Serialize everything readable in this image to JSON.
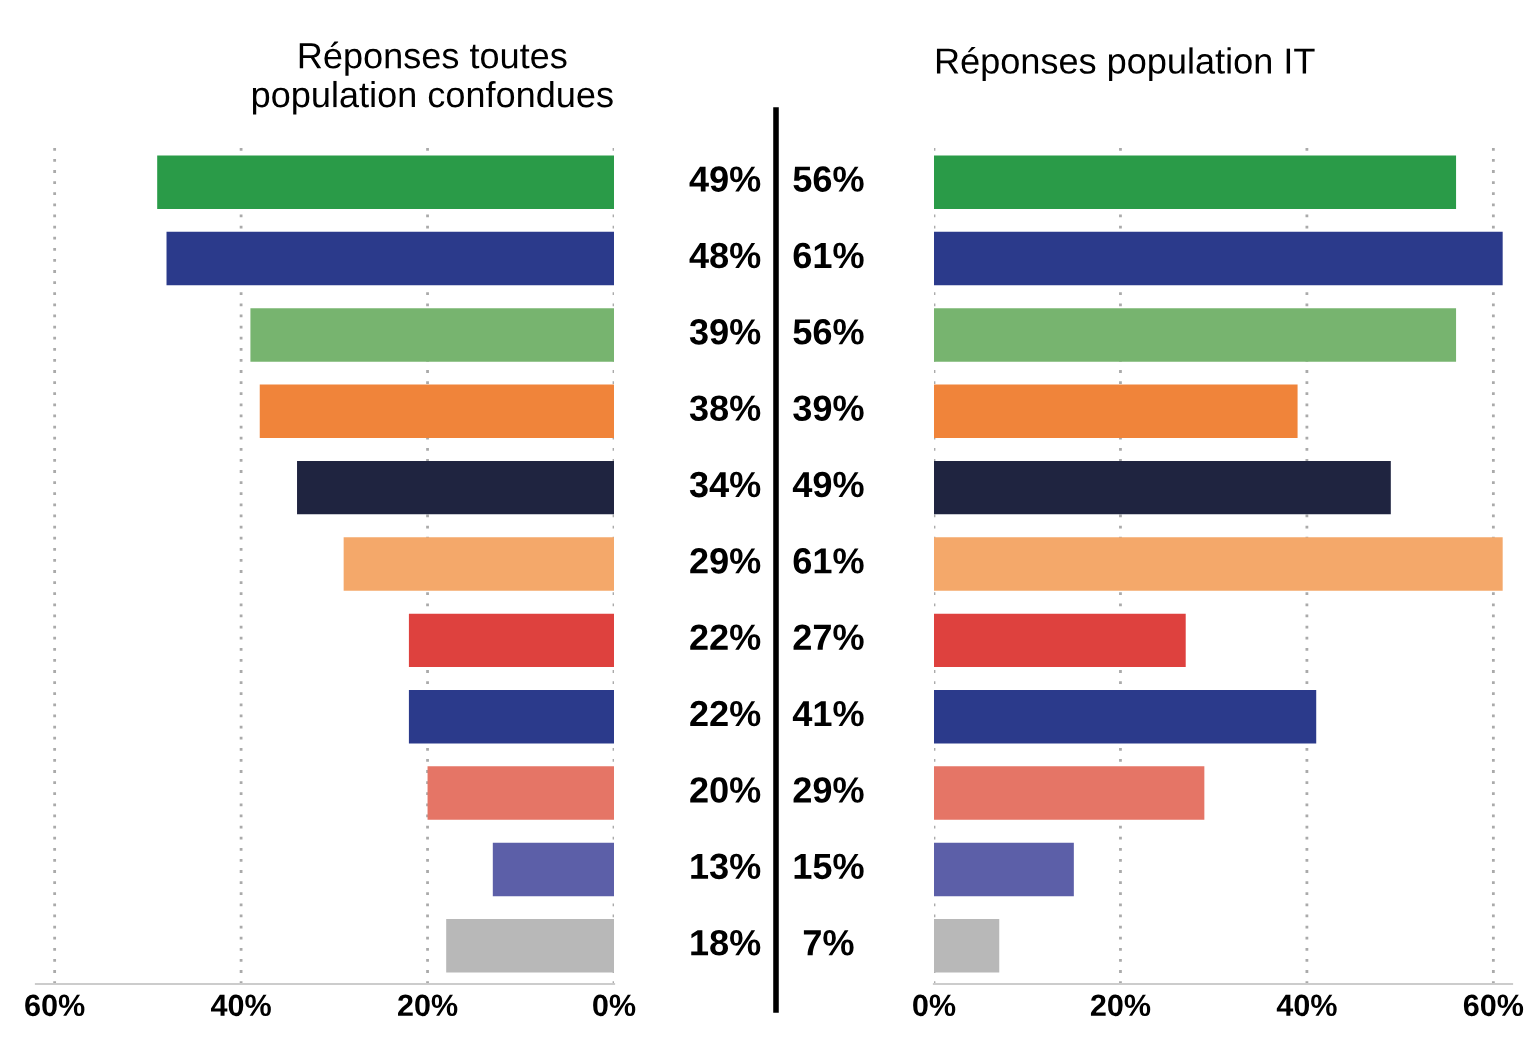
{
  "chart_data": [
    {
      "type": "bar",
      "orientation": "horizontal",
      "title": "Réponses toutes\npopulation confondues",
      "categories": [
        null,
        null,
        null,
        null,
        null,
        null,
        null,
        null,
        null,
        null,
        null
      ],
      "values": [
        49,
        48,
        39,
        38,
        34,
        29,
        22,
        22,
        20,
        13,
        18
      ],
      "value_labels": [
        "49%",
        "48%",
        "39%",
        "38%",
        "34%",
        "29%",
        "22%",
        "22%",
        "20%",
        "13%",
        "18%"
      ],
      "colors": [
        "#2a9b48",
        "#2b3a8b",
        "#77b46f",
        "#f0843a",
        "#1f2440",
        "#f4a86a",
        "#de413e",
        "#2b3a8b",
        "#e57566",
        "#5c5fa8",
        "#b8b8b8"
      ],
      "xlim": [
        62,
        0
      ],
      "xticks": [
        {
          "value": 60,
          "label": "60%"
        },
        {
          "value": 40,
          "label": "40%"
        },
        {
          "value": 20,
          "label": "20%"
        },
        {
          "value": 0,
          "label": "0%"
        }
      ],
      "grid": "x"
    },
    {
      "type": "bar",
      "orientation": "horizontal",
      "title": "Réponses population IT",
      "categories": [
        null,
        null,
        null,
        null,
        null,
        null,
        null,
        null,
        null,
        null,
        null
      ],
      "values": [
        56,
        61,
        56,
        39,
        49,
        61,
        27,
        41,
        29,
        15,
        7
      ],
      "value_labels": [
        "56%",
        "61%",
        "56%",
        "39%",
        "49%",
        "61%",
        "27%",
        "41%",
        "29%",
        "15%",
        "7%"
      ],
      "colors": [
        "#2a9b48",
        "#2b3a8b",
        "#77b46f",
        "#f0843a",
        "#1f2440",
        "#f4a86a",
        "#de413e",
        "#2b3a8b",
        "#e57566",
        "#5c5fa8",
        "#b8b8b8"
      ],
      "xlim": [
        0,
        62
      ],
      "xticks": [
        {
          "value": 0,
          "label": "0%"
        },
        {
          "value": 20,
          "label": "20%"
        },
        {
          "value": 40,
          "label": "40%"
        },
        {
          "value": 60,
          "label": "60%"
        }
      ],
      "grid": "x"
    }
  ]
}
